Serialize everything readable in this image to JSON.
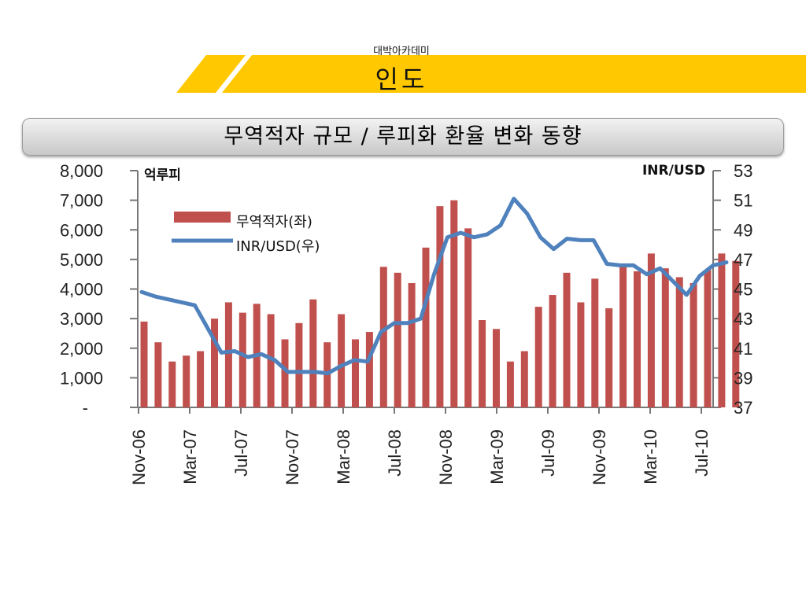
{
  "header": {
    "brand": "대박아카데미",
    "title": "인도"
  },
  "colors": {
    "accent": "#FFC800",
    "bar": "#C0504D",
    "line": "#4F81BD"
  },
  "chart_data": {
    "type": "bar+line",
    "title": "무역적자 규모 / 루피화 환율 변화 동향",
    "left_axis_unit": "억루피",
    "right_axis_unit": "INR/USD",
    "left_ylim": [
      0,
      8000
    ],
    "right_ylim": [
      37,
      53
    ],
    "left_ticks": [
      "-",
      "1,000",
      "2,000",
      "3,000",
      "4,000",
      "5,000",
      "6,000",
      "7,000",
      "8,000"
    ],
    "right_ticks": [
      "37",
      "39",
      "41",
      "43",
      "45",
      "47",
      "49",
      "51",
      "53"
    ],
    "x_tick_labels": [
      "Nov-06",
      "Mar-07",
      "Jul-07",
      "Nov-07",
      "Mar-08",
      "Jul-08",
      "Nov-08",
      "Mar-09",
      "Jul-09",
      "Nov-09",
      "Mar-10",
      "Jul-10"
    ],
    "legend": [
      "무역적자(좌)",
      "INR/USD(우)"
    ],
    "series": [
      {
        "name": "무역적자(좌)",
        "type": "bar",
        "axis": "left",
        "values": [
          2900,
          2200,
          1550,
          1750,
          1900,
          3000,
          3550,
          3200,
          3500,
          3150,
          2300,
          2850,
          3650,
          2200,
          3150,
          2300,
          2550,
          4750,
          4550,
          4200,
          5400,
          6800,
          7000,
          6050,
          2950,
          2650,
          1550,
          1900,
          3400,
          3800,
          4550,
          3550,
          4350,
          3350,
          4800,
          4600,
          5200,
          4700,
          4400,
          4200,
          4650,
          5200,
          4950
        ]
      },
      {
        "name": "INR/USD(우)",
        "type": "line",
        "axis": "right",
        "values": [
          44.8,
          44.5,
          44.3,
          44.1,
          43.9,
          42.3,
          40.7,
          40.8,
          40.4,
          40.6,
          40.2,
          39.4,
          39.4,
          39.4,
          39.3,
          39.8,
          40.2,
          40.1,
          42.1,
          42.7,
          42.7,
          43.0,
          46.0,
          48.5,
          48.8,
          48.5,
          48.7,
          49.3,
          51.1,
          50.1,
          48.5,
          47.7,
          48.4,
          48.3,
          48.3,
          46.7,
          46.6,
          46.6,
          46.0,
          46.4,
          45.5,
          44.6,
          45.9,
          46.6,
          46.8
        ]
      }
    ]
  }
}
